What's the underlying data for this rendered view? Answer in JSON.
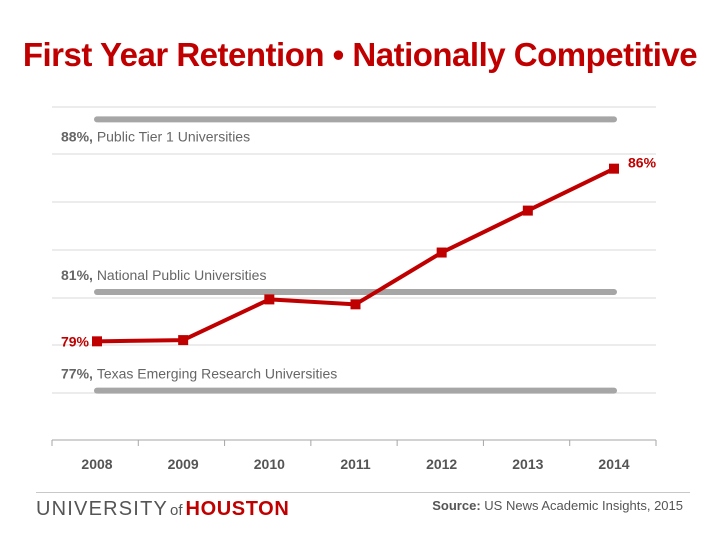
{
  "header": {
    "title": "First Year Retention • Nationally Competitive"
  },
  "footer": {
    "logo": {
      "part1": "UNIVERSITY",
      "part2": "of",
      "part3": "HOUSTON"
    },
    "source_label": "Source:",
    "source_text": "US News Academic Insights, 2015"
  },
  "colors": {
    "accent": "#c00000",
    "benchmark_line": "#a6a6a6",
    "grid": "#d9d9d9",
    "text": "#555555"
  },
  "chart_data": {
    "type": "line",
    "title": "First Year Retention • Nationally Competitive",
    "xlabel": "",
    "ylabel": "",
    "categories": [
      "2008",
      "2009",
      "2010",
      "2011",
      "2012",
      "2013",
      "2014"
    ],
    "series": [
      {
        "values": [
          79.0,
          79.05,
          80.7,
          80.5,
          82.6,
          84.3,
          86.0
        ],
        "color": "#c00000"
      }
    ],
    "data_labels": [
      {
        "category": "2008",
        "text": "79%"
      },
      {
        "category": "2014",
        "text": "86%"
      }
    ],
    "benchmarks": [
      {
        "value": 88,
        "value_label": "88%,",
        "label": "Public Tier 1 Universities"
      },
      {
        "value": 81,
        "value_label": "81%,",
        "label": "National Public Universities"
      },
      {
        "value": 77,
        "value_label": "77%,",
        "label": "Texas Emerging Research Universities"
      }
    ],
    "ylim": [
      75,
      88.5
    ],
    "grid": true,
    "legend": "none"
  }
}
